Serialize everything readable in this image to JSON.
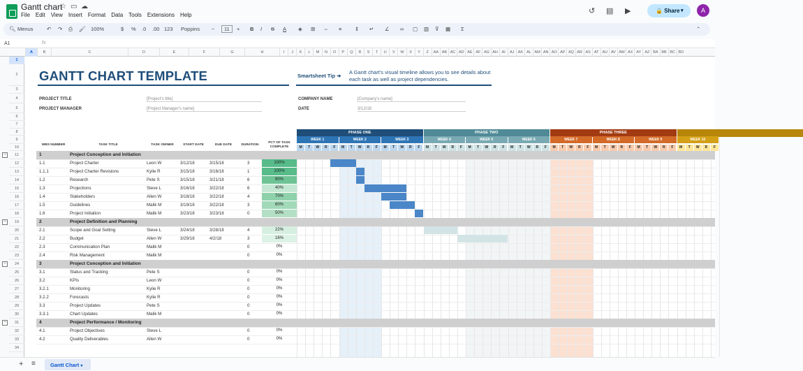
{
  "app": {
    "title": "Gantt chart",
    "menus": [
      "File",
      "Edit",
      "View",
      "Insert",
      "Format",
      "Data",
      "Tools",
      "Extensions",
      "Help"
    ],
    "share_label": "Share",
    "avatar_letter": "A"
  },
  "toolbar": {
    "menus_label": "Menus",
    "zoom": "100%",
    "currency": "$",
    "percent": "%",
    "dec_less": ".0",
    "dec_more": ".00",
    "number_format": "123",
    "font": "Poppins",
    "font_size": "11",
    "bold": "B",
    "italic": "I",
    "strike": "S",
    "textcolor": "A",
    "sum": "Σ"
  },
  "formula_bar": {
    "namebox": "A1",
    "fx": "fx"
  },
  "columns": [
    "A",
    "B",
    "C",
    "D",
    "E",
    "F",
    "G",
    "H",
    "I",
    "J",
    "K",
    "L",
    "M",
    "N",
    "O",
    "P",
    "Q",
    "R",
    "S",
    "T",
    "U",
    "V",
    "W",
    "X",
    "Y",
    "Z",
    "AA",
    "AB",
    "AC",
    "AD",
    "AE",
    "AF",
    "AG",
    "AH",
    "AI",
    "AJ",
    "AK",
    "AL",
    "AM",
    "AN",
    "AO",
    "AP",
    "AQ",
    "AR",
    "AS",
    "AT",
    "AU",
    "AV",
    "AW",
    "AX",
    "AY",
    "AZ",
    "BA",
    "BB",
    "BC",
    "BD"
  ],
  "rows": [
    "1",
    "2",
    "3",
    "4",
    "5",
    "6",
    "7",
    "8",
    "9",
    "10",
    "11",
    "12",
    "13",
    "14",
    "15",
    "16",
    "17",
    "18",
    "19",
    "20",
    "21",
    "22",
    "23",
    "24",
    "25",
    "26",
    "27",
    "28",
    "29",
    "30",
    "31",
    "32",
    "33",
    "34"
  ],
  "sheet": {
    "title": "GANTT CHART TEMPLATE",
    "tip_label": "Smartsheet Tip ➜",
    "tip_text": "A Gantt chart's visual timeline allows you to see details about each task as well as project dependencies.",
    "project_title_label": "PROJECT TITLE",
    "project_title_value": "[Project's title]",
    "project_manager_label": "PROJECT MANAGER",
    "project_manager_value": "[Project Manager's name]",
    "company_label": "COMPANY NAME",
    "company_value": "[Company's name]",
    "date_label": "DATE",
    "date_value": "3/12/18",
    "headers": {
      "wbs": "WBS NUMBER",
      "task": "TASK TITLE",
      "owner": "TASK OWNER",
      "start": "START DATE",
      "due": "DUE DATE",
      "duration": "DURATION",
      "pct": "PCT OF TASK COMPLETE"
    },
    "phases": [
      {
        "label": "PHASE ONE",
        "color": "#1f4e79"
      },
      {
        "label": "PHASE TWO",
        "color": "#4f8a96"
      },
      {
        "label": "PHASE THREE",
        "color": "#a23b12"
      },
      {
        "label": "",
        "color": "#b8860b"
      }
    ],
    "weeks": [
      "WEEK 1",
      "WEEK 2",
      "WEEK 3",
      "WEEK 4",
      "WEEK 5",
      "WEEK 6",
      "WEEK 7",
      "WEEK 8",
      "WEEK 9",
      "WEEK 10"
    ],
    "days": [
      "M",
      "T",
      "W",
      "R",
      "F"
    ],
    "rows": [
      {
        "kind": "section",
        "wbs": "1",
        "title": "Project Conception and Initiation"
      },
      {
        "kind": "task",
        "wbs": "1.1",
        "title": "Project Charter",
        "owner": "Leon W",
        "start": "3/12/18",
        "due": "3/15/18",
        "duration": "3",
        "pct": "100%",
        "pct_color": "#57bb8a",
        "bar": [
          4,
          3
        ],
        "bar_color": "#4a86c8"
      },
      {
        "kind": "task",
        "wbs": "1.1.1",
        "title": "Project Charter Revisions",
        "owner": "Kylie R",
        "start": "3/15/18",
        "due": "3/16/18",
        "duration": "1",
        "pct": "100%",
        "pct_color": "#57bb8a",
        "bar": [
          7,
          1
        ],
        "bar_color": "#4a86c8"
      },
      {
        "kind": "task",
        "wbs": "1.2",
        "title": "Research",
        "owner": "Pete S",
        "start": "3/15/18",
        "due": "3/21/18",
        "duration": "6",
        "pct": "90%",
        "pct_color": "#6ec395",
        "bar": [
          7,
          1
        ],
        "bar_color": "#4a86c8"
      },
      {
        "kind": "task",
        "wbs": "1.3",
        "title": "Projections",
        "owner": "Steve L",
        "start": "3/16/18",
        "due": "3/22/18",
        "duration": "6",
        "pct": "40%",
        "pct_color": "#c4e7d3",
        "bar": [
          8,
          5
        ],
        "bar_color": "#4a86c8"
      },
      {
        "kind": "task",
        "wbs": "1.4",
        "title": "Stakeholders",
        "owner": "Allen W",
        "start": "3/18/18",
        "due": "3/22/18",
        "duration": "4",
        "pct": "70%",
        "pct_color": "#8fd1ab",
        "bar": [
          10,
          3
        ],
        "bar_color": "#4a86c8"
      },
      {
        "kind": "task",
        "wbs": "1.5",
        "title": "Guidelines",
        "owner": "Malik M",
        "start": "3/19/18",
        "due": "3/22/18",
        "duration": "3",
        "pct": "60%",
        "pct_color": "#a2d9b9",
        "bar": [
          11,
          3
        ],
        "bar_color": "#4a86c8"
      },
      {
        "kind": "task",
        "wbs": "1.6",
        "title": "Project Initiation",
        "owner": "Malik M",
        "start": "3/23/18",
        "due": "3/23/18",
        "duration": "0",
        "pct": "50%",
        "pct_color": "#b3e0c5",
        "bar": [
          14,
          1
        ],
        "bar_color": "#4a86c8"
      },
      {
        "kind": "section",
        "wbs": "2",
        "title": "Project Definition and Planning"
      },
      {
        "kind": "task",
        "wbs": "2.1",
        "title": "Scope and Goal Setting",
        "owner": "Steve L",
        "start": "3/24/18",
        "due": "3/28/18",
        "duration": "4",
        "pct": "22%",
        "pct_color": "#d6efe1",
        "bar": [
          15,
          4
        ],
        "bar_color": "#d3e4e6"
      },
      {
        "kind": "task",
        "wbs": "2.2",
        "title": "Budget",
        "owner": "Allen W",
        "start": "3/29/18",
        "due": "4/2/18",
        "duration": "3",
        "pct": "16%",
        "pct_color": "#ddf2e6",
        "bar": [
          19,
          6
        ],
        "bar_color": "#d3e4e6"
      },
      {
        "kind": "task",
        "wbs": "2.3",
        "title": "Communication Plan",
        "owner": "Malik M",
        "start": "",
        "due": "",
        "duration": "0",
        "pct": "0%",
        "pct_color": "",
        "bar": null,
        "bar_color": ""
      },
      {
        "kind": "task",
        "wbs": "2.4",
        "title": "Risk Management",
        "owner": "Malik M",
        "start": "",
        "due": "",
        "duration": "0",
        "pct": "0%",
        "pct_color": "",
        "bar": null,
        "bar_color": ""
      },
      {
        "kind": "section",
        "wbs": "3",
        "title": "Project Conception and Initiation"
      },
      {
        "kind": "task",
        "wbs": "3.1",
        "title": "Status and Tracking",
        "owner": "Pete S",
        "start": "",
        "due": "",
        "duration": "0",
        "pct": "0%",
        "pct_color": "",
        "bar": null,
        "bar_color": ""
      },
      {
        "kind": "task",
        "wbs": "3.2",
        "title": "KPIs",
        "owner": "Leon W",
        "start": "",
        "due": "",
        "duration": "0",
        "pct": "0%",
        "pct_color": "",
        "bar": null,
        "bar_color": ""
      },
      {
        "kind": "task",
        "wbs": "3.2.1",
        "title": "Monitoring",
        "owner": "Kylie R",
        "start": "",
        "due": "",
        "duration": "0",
        "pct": "0%",
        "pct_color": "",
        "bar": null,
        "bar_color": ""
      },
      {
        "kind": "task",
        "wbs": "3.2.2",
        "title": "Forecasts",
        "owner": "Kylie R",
        "start": "",
        "due": "",
        "duration": "0",
        "pct": "0%",
        "pct_color": "",
        "bar": null,
        "bar_color": ""
      },
      {
        "kind": "task",
        "wbs": "3.3",
        "title": "Project Updates",
        "owner": "Pete S",
        "start": "",
        "due": "",
        "duration": "0",
        "pct": "0%",
        "pct_color": "",
        "bar": null,
        "bar_color": ""
      },
      {
        "kind": "task",
        "wbs": "3.3.1",
        "title": "Chart Updates",
        "owner": "Malik M",
        "start": "",
        "due": "",
        "duration": "0",
        "pct": "0%",
        "pct_color": "",
        "bar": null,
        "bar_color": ""
      },
      {
        "kind": "section",
        "wbs": "4",
        "title": "Project Performance / Monitoring"
      },
      {
        "kind": "task",
        "wbs": "4.1",
        "title": "Project Objectives",
        "owner": "Steve L",
        "start": "",
        "due": "",
        "duration": "0",
        "pct": "0%",
        "pct_color": "",
        "bar": null,
        "bar_color": ""
      },
      {
        "kind": "task",
        "wbs": "4.2",
        "title": "Quality Deliverables",
        "owner": "Allen W",
        "start": "",
        "due": "",
        "duration": "0",
        "pct": "0%",
        "pct_color": "",
        "bar": null,
        "bar_color": ""
      }
    ]
  },
  "tabs": {
    "sheet_name": "Gantt Chart"
  }
}
